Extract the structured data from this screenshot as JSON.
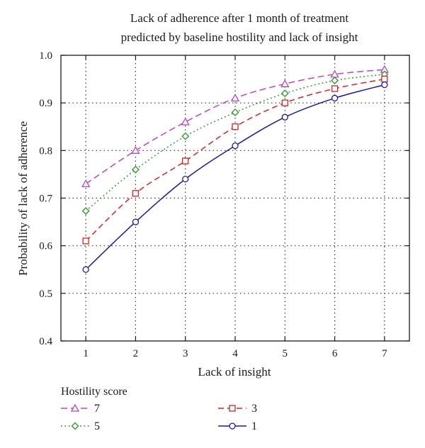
{
  "chart_data": {
    "type": "line",
    "title": [
      "Lack of adherence after 1 month of treatment",
      "predicted by baseline hostility and lack of insight"
    ],
    "xlabel": "Lack of insight",
    "ylabel": "Probability of lack of adherence",
    "x": [
      1,
      2,
      3,
      4,
      5,
      6,
      7
    ],
    "xlim": [
      0.5,
      7.5
    ],
    "ylim": [
      0.4,
      1.0
    ],
    "x_ticks": [
      "1",
      "2",
      "3",
      "4",
      "5",
      "6",
      "7"
    ],
    "y_ticks": [
      "0.4",
      "0.5",
      "0.6",
      "0.7",
      "0.8",
      "0.9",
      "1.0"
    ],
    "grid": true,
    "legend_title": "Hostility score",
    "legend_position": "bottom",
    "series": [
      {
        "name": "7",
        "values": [
          0.73,
          0.8,
          0.86,
          0.91,
          0.94,
          0.96,
          0.97
        ],
        "color": "#bb44cc",
        "marker": "triangle",
        "dash": "9 5"
      },
      {
        "name": "5",
        "values": [
          0.673,
          0.76,
          0.83,
          0.88,
          0.92,
          0.947,
          0.96
        ],
        "color": "#22991f",
        "marker": "diamond",
        "dash": "1.8 3.6"
      },
      {
        "name": "3",
        "values": [
          0.61,
          0.71,
          0.778,
          0.85,
          0.9,
          0.93,
          0.95
        ],
        "color": "#e02020",
        "marker": "square",
        "dash": "8 5"
      },
      {
        "name": "1",
        "values": [
          0.55,
          0.65,
          0.74,
          0.81,
          0.87,
          0.91,
          0.938
        ],
        "color": "#1a1aaa",
        "marker": "circle",
        "dash": ""
      }
    ]
  }
}
